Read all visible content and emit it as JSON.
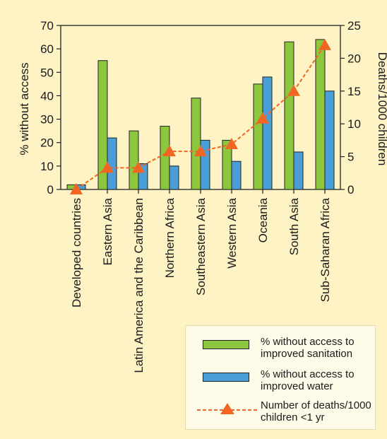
{
  "chart_data": {
    "type": "bar",
    "categories": [
      "Developed countries",
      "Eastern Asia",
      "Latin America and the Caribbean",
      "Northern Africa",
      "Southeastern Asia",
      "Western Asia",
      "Oceania",
      "South Asia",
      "Sub-Saharan Africa"
    ],
    "series": [
      {
        "name": "% without access to improved sanitation",
        "values": [
          2,
          55,
          25,
          27,
          39,
          21,
          45,
          63,
          64
        ],
        "color": "#8dc63f",
        "axis": "left"
      },
      {
        "name": "% without access to improved water",
        "values": [
          2,
          22,
          11,
          10,
          21,
          12,
          48,
          16,
          42
        ],
        "color": "#4a9fd8",
        "axis": "left"
      },
      {
        "name": "Number of deaths/1000 children <1 yr",
        "type": "line",
        "values": [
          0,
          3.3,
          3.3,
          5.8,
          5.8,
          6.9,
          10.8,
          15.0,
          22.0
        ],
        "color": "#f26522",
        "axis": "right"
      }
    ],
    "ylabel": "% without access",
    "y2label": "Deaths/1000 children",
    "ylim": [
      0,
      70
    ],
    "y2lim": [
      0,
      25
    ],
    "yticks": [
      0,
      10,
      20,
      30,
      40,
      50,
      60,
      70
    ],
    "y2ticks": [
      0,
      5,
      10,
      15,
      20,
      25
    ],
    "legend": "bottom-right",
    "grid": false
  },
  "legend_items": [
    {
      "label": "% without access to improved sanitation"
    },
    {
      "label": "% without access to improved water"
    },
    {
      "label": "Number of deaths/1000 children <1 yr"
    }
  ]
}
